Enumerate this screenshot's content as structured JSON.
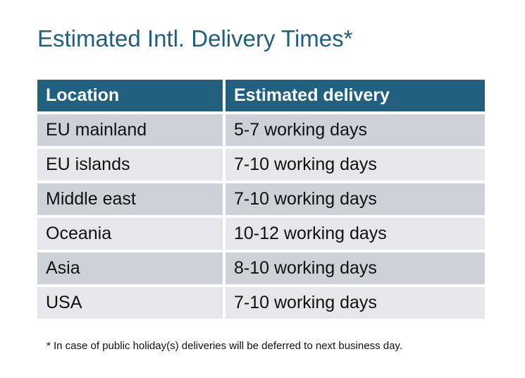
{
  "title": "Estimated Intl. Delivery Times*",
  "table": {
    "headers": [
      "Location",
      "Estimated delivery"
    ],
    "rows": [
      [
        "EU mainland",
        "5-7 working days"
      ],
      [
        "EU islands",
        "7-10 working days"
      ],
      [
        "Middle east",
        "7-10 working days"
      ],
      [
        "Oceania",
        "10-12 working days"
      ],
      [
        "Asia",
        "8-10 working days"
      ],
      [
        "USA",
        "7-10 working days"
      ]
    ]
  },
  "footnote": "* In case of public holiday(s) deliveries will be deferred to next business day.",
  "colors": {
    "header": "#21607f",
    "row_dark": "#cdd1d8",
    "row_light": "#e5e7ea",
    "title": "#215f7e"
  }
}
